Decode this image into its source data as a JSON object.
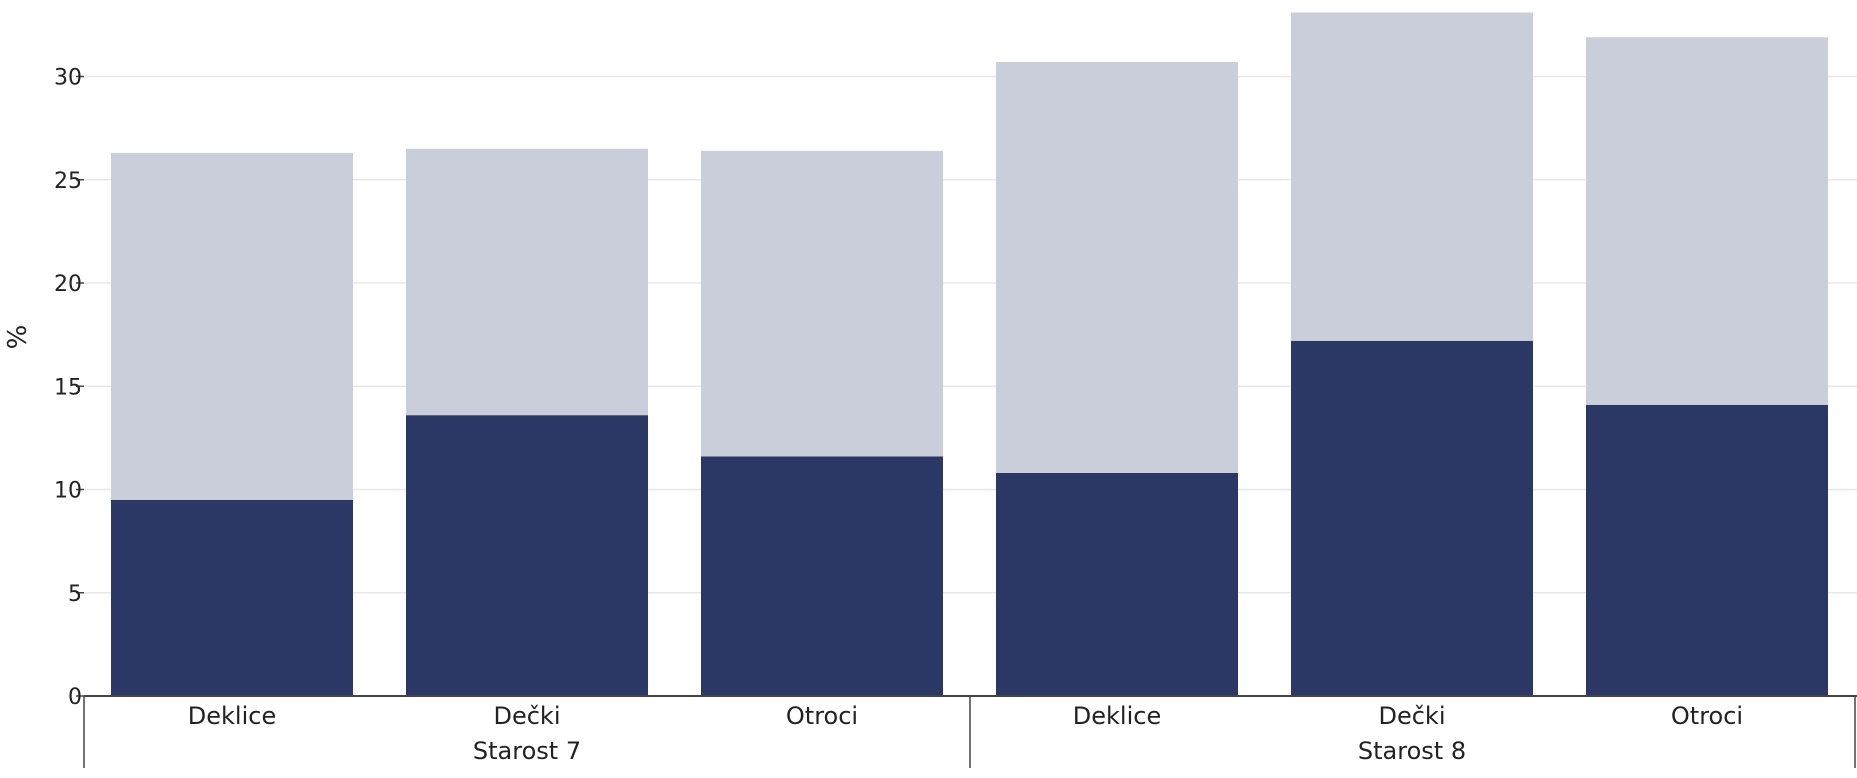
{
  "chart_data": {
    "type": "bar",
    "stacked": true,
    "title": "",
    "ylabel": "%",
    "ylim": [
      0,
      33
    ],
    "yticks": [
      0,
      5,
      10,
      15,
      20,
      25,
      30
    ],
    "grid": true,
    "groups": [
      {
        "label": "Starost 7",
        "categories": [
          "Deklice",
          "Dečki",
          "Otroci"
        ]
      },
      {
        "label": "Starost 8",
        "categories": [
          "Deklice",
          "Dečki",
          "Otroci"
        ]
      }
    ],
    "series": [
      {
        "color": "#2b3764",
        "values": [
          9.5,
          13.6,
          11.6,
          10.8,
          17.2,
          14.1
        ]
      },
      {
        "color": "#cacdda",
        "values": [
          16.8,
          12.9,
          14.8,
          19.9,
          15.9,
          17.8
        ]
      }
    ],
    "colors": {
      "grid": "#e8e8e8",
      "axis": "#444444",
      "text": "#222222"
    }
  }
}
